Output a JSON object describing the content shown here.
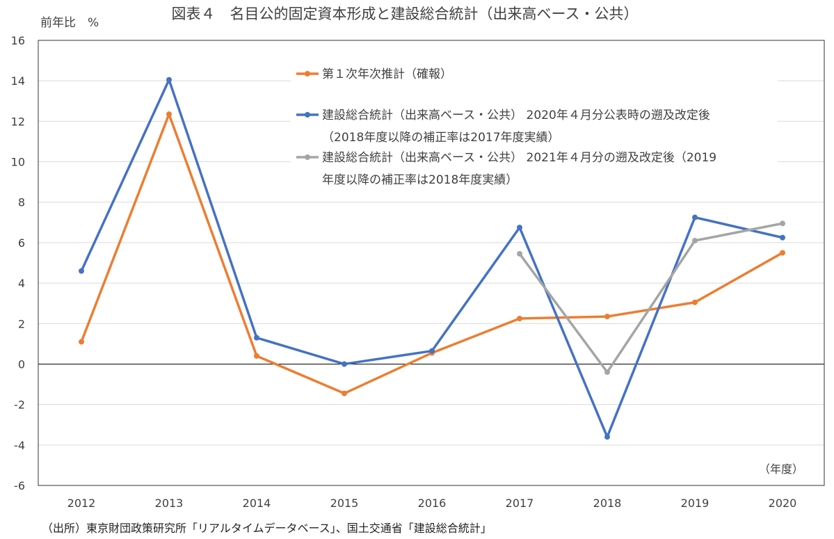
{
  "chart_data": {
    "type": "line",
    "title": "図表４　名目公的固定資本形成と建設総合統計（出来高ベース・公共）",
    "ylabel": "前年比　%",
    "xlabel": "（年度）",
    "source": "（出所）東京財団政策研究所「リアルタイムデータベース」、国土交通省「建設総合統計」",
    "categories": [
      "2012",
      "2013",
      "2014",
      "2015",
      "2016",
      "2017",
      "2018",
      "2019",
      "2020"
    ],
    "ylim": [
      -6,
      16
    ],
    "yticks": [
      "16",
      "14",
      "12",
      "10",
      "8",
      "6",
      "4",
      "2",
      "0",
      "-2",
      "-4",
      "-6"
    ],
    "grid": true,
    "legend_position": "top-right",
    "series": [
      {
        "name": "第１次年次推計（確報）",
        "color": "#ED7D31",
        "values": [
          1.1,
          12.35,
          0.4,
          -1.45,
          0.55,
          2.25,
          2.35,
          3.05,
          5.5
        ]
      },
      {
        "name": "建設総合統計（出来高ベース・公共） 2020年４月分公表時の遡及改定後（2018年度以降の補正率は2017年度実績）",
        "legend_lines": [
          "建設総合統計（出来高ベース・公共） 2020年４月分公表時の遡及改定後",
          "（2018年度以降の補正率は2017年度実績）"
        ],
        "color": "#4472C4",
        "values": [
          4.6,
          14.05,
          1.3,
          0.0,
          0.65,
          6.75,
          -3.6,
          7.25,
          6.25
        ]
      },
      {
        "name": "建設総合統計（出来高ベース・公共） 2021年４月分の遡及改定後（2019年度以降の補正率は2018年度実績）",
        "legend_lines": [
          "建設総合統計（出来高ベース・公共） 2021年４月分の遡及改定後（2019",
          "年度以降の補正率は2018年度実績）"
        ],
        "color": "#A5A5A5",
        "values": [
          null,
          null,
          null,
          null,
          null,
          5.45,
          -0.4,
          6.1,
          6.95
        ]
      }
    ]
  }
}
